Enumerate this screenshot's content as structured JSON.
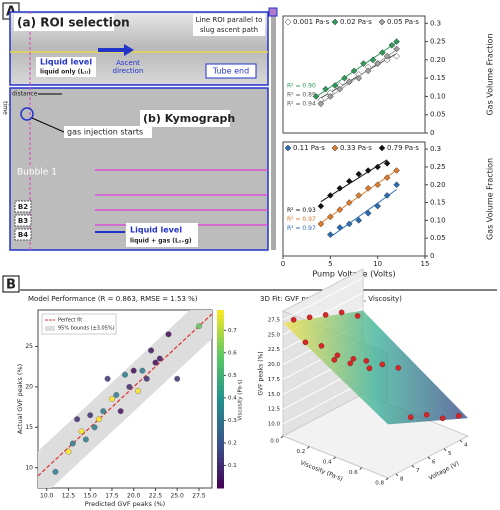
{
  "panel_a": {
    "label": "A",
    "roi_title": "(a) ROI selection",
    "roi_note": [
      "Line ROI parallel to",
      "slug ascent path"
    ],
    "liquid_level_top": "Liquid level",
    "liquid_only": "liquid only (L₁ₗ)",
    "ascent": [
      "Ascent",
      "direction"
    ],
    "tube_end": "Tube end",
    "distance": "distance",
    "time": "time",
    "kymo_title": "(b) Kymograph",
    "gas_injection": "gas injection starts",
    "bubbles": [
      "Bubble 1",
      "B2",
      "B3",
      "B4"
    ],
    "liquid_level_bottom": "Liquid level",
    "liquid_gas": "liquid + gas (L₁₊g)"
  },
  "panel_b": {
    "label": "B"
  },
  "chart_data": [
    {
      "type": "scatter",
      "ylabel": "Gas Volume Fraction",
      "xlim": [
        0,
        15
      ],
      "ylim": [
        0,
        0.32
      ],
      "yticks": [
        0,
        0.05,
        {
          "value": 0.1,
          "label": "0.10"
        },
        0.15,
        {
          "value": 0.2,
          "label": "0.20"
        },
        0.25,
        0.3
      ],
      "series": [
        {
          "name": "0.001 Pa·s",
          "color": "#ffffff",
          "x": [
            4,
            5,
            6,
            7,
            8,
            9,
            10,
            11,
            12
          ],
          "values": [
            0.09,
            0.11,
            0.13,
            0.14,
            0.16,
            0.18,
            0.19,
            0.2,
            0.21
          ]
        },
        {
          "name": "0.02 Pa·s",
          "color": "#2e9b5a",
          "x": [
            3.5,
            4.5,
            5.5,
            6.5,
            7.5,
            8.5,
            9.5,
            10.5,
            11.5,
            12
          ],
          "values": [
            0.1,
            0.12,
            0.13,
            0.15,
            0.17,
            0.19,
            0.2,
            0.22,
            0.24,
            0.25
          ]
        },
        {
          "name": "0.05 Pa·s",
          "color": "#a0a0a0",
          "x": [
            4,
            5,
            6,
            7,
            8,
            9,
            10,
            11,
            12
          ],
          "values": [
            0.08,
            0.1,
            0.12,
            0.14,
            0.15,
            0.17,
            0.19,
            0.21,
            0.23
          ]
        }
      ],
      "r2_labels": [
        {
          "text": "R² = 0.90",
          "color": "#2e9b5a"
        },
        {
          "text": "R² = 0.89",
          "color": "#555555"
        },
        {
          "text": "R² = 0.94",
          "color": "#555555"
        }
      ]
    },
    {
      "type": "scatter",
      "xlabel": "Pump Voltage (Volts)",
      "ylabel": "Gas Volume Fraction",
      "xlim": [
        0,
        15
      ],
      "ylim": [
        0,
        0.32
      ],
      "xticks": [
        0,
        5,
        10,
        15
      ],
      "yticks": [
        0,
        0.05,
        {
          "value": 0.1,
          "label": "0.10"
        },
        0.15,
        {
          "value": 0.2,
          "label": "0.20"
        },
        0.25,
        0.3
      ],
      "series": [
        {
          "name": "0.11 Pa·s",
          "color": "#2a6db5",
          "x": [
            5,
            6,
            7,
            8,
            9,
            10,
            11,
            12
          ],
          "values": [
            0.06,
            0.08,
            0.09,
            0.1,
            0.12,
            0.14,
            0.17,
            0.2
          ]
        },
        {
          "name": "0.33 Pa·s",
          "color": "#e07b2a",
          "x": [
            4,
            5,
            6,
            7,
            8,
            9,
            10,
            11,
            12
          ],
          "values": [
            0.09,
            0.11,
            0.13,
            0.15,
            0.17,
            0.19,
            0.2,
            0.22,
            0.24
          ]
        },
        {
          "name": "0.79 Pa·s",
          "color": "#111111",
          "x": [
            4,
            5,
            6,
            7,
            8,
            9,
            10,
            11
          ],
          "values": [
            0.14,
            0.17,
            0.19,
            0.21,
            0.23,
            0.24,
            0.25,
            0.26
          ]
        }
      ],
      "r2_labels": [
        {
          "text": "R² = 0.93",
          "color": "#111111"
        },
        {
          "text": "R² = 0.97",
          "color": "#e07b2a"
        },
        {
          "text": "R² = 0.97",
          "color": "#2a6db5"
        }
      ]
    },
    {
      "type": "parity",
      "title": "Model Performance (R  = 0.863, RMSE = 1.53 %)",
      "xlabel": "Predicted GVF peaks (%)",
      "ylabel": "Actual GVF peaks (%)",
      "xlim": [
        9,
        29
      ],
      "ylim": [
        7.5,
        29.5
      ],
      "xticks": [
        {
          "value": 10,
          "label": "10.0"
        },
        12.5,
        {
          "value": 15,
          "label": "15.0"
        },
        17.5,
        {
          "value": 20,
          "label": "20.0"
        },
        22.5,
        {
          "value": 25,
          "label": "25.0"
        },
        27.5
      ],
      "yticks": [
        10,
        15,
        20,
        25
      ],
      "legend": [
        "Perfect fit",
        "95% bounds (±3.05%)"
      ],
      "band": 3.05,
      "x": [
        11,
        12.5,
        13,
        13.5,
        14,
        14.5,
        15,
        15.5,
        16,
        16.5,
        17,
        17.5,
        18,
        18.5,
        19,
        19.5,
        20,
        20.5,
        21,
        21.5,
        22,
        22.5,
        23,
        24,
        25,
        27.5
      ],
      "values": [
        9.5,
        12,
        13,
        16,
        14.5,
        13.5,
        16.5,
        15,
        16,
        17,
        21,
        18.5,
        19,
        17,
        21.5,
        20,
        22,
        19.5,
        22,
        21,
        24.5,
        23,
        23.5,
        26.5,
        21,
        27.5
      ],
      "c": [
        0.33,
        0.79,
        0.33,
        0.11,
        0.79,
        0.33,
        0.11,
        0.33,
        0.79,
        0.33,
        0.11,
        0.79,
        0.33,
        0.05,
        0.33,
        0.11,
        0.02,
        0.79,
        0.33,
        0.11,
        0.05,
        0.02,
        0.05,
        0.02,
        0.11,
        0.6
      ],
      "colorbar": {
        "label": "Viscosity (Pa·s)",
        "lim": [
          0,
          0.79
        ],
        "ticks": [
          0.1,
          0.2,
          0.3,
          0.4,
          0.5,
          0.6,
          0.7
        ]
      }
    },
    {
      "type": "scatter3d",
      "title": "3D Fit: GVF peaks = f(Voltage, Viscosity)",
      "xlabel": "Voltage (V)",
      "ylabel": "Viscosity (Pa·s)",
      "zlabel": "GVF peaks (%)",
      "xlim": [
        3.5,
        8.5
      ],
      "ylim": [
        0,
        0.8
      ],
      "zlim": [
        8,
        29
      ],
      "xticks": [
        4,
        5,
        6,
        7,
        8
      ],
      "yticks": [
        {
          "value": 0,
          "label": "0.0"
        },
        0.2,
        0.4,
        0.6,
        0.8
      ],
      "zticks": [
        {
          "value": 10,
          "label": "10.0"
        },
        12.5,
        {
          "value": 15,
          "label": "15.0"
        },
        17.5,
        {
          "value": 20,
          "label": "20.0"
        },
        22.5,
        {
          "value": 25,
          "label": "25.0"
        },
        27.5
      ],
      "color": "#d62728",
      "x": [
        4,
        5,
        6,
        7,
        8,
        4,
        5,
        6,
        7,
        8,
        4,
        5,
        6,
        7,
        4,
        5,
        6,
        7,
        8
      ],
      "y": [
        0.02,
        0.02,
        0.02,
        0.02,
        0.02,
        0.33,
        0.33,
        0.33,
        0.33,
        0.33,
        0.79,
        0.79,
        0.79,
        0.79,
        0.11,
        0.11,
        0.11,
        0.11,
        0.11
      ],
      "values": [
        22,
        24,
        25,
        26,
        27,
        16,
        18,
        20,
        21,
        23,
        12,
        13,
        15,
        16,
        14,
        17,
        19,
        22,
        24
      ]
    }
  ]
}
